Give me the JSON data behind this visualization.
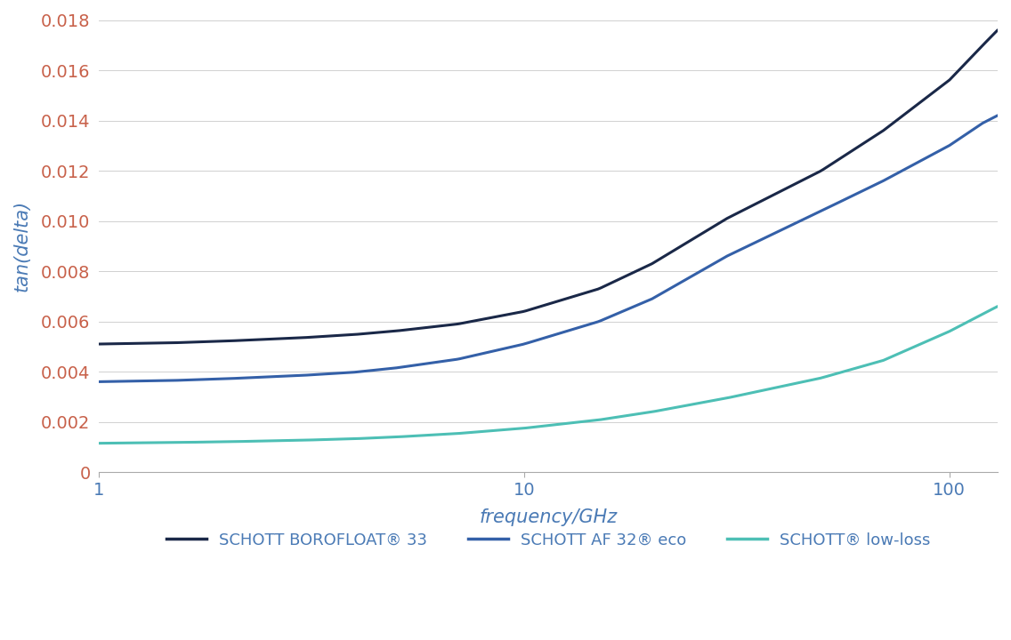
{
  "title": "",
  "xlabel": "frequency/GHz",
  "ylabel": "tan(delta)",
  "xlim": [
    1,
    130
  ],
  "ylim": [
    0,
    0.018
  ],
  "yticks": [
    0,
    0.002,
    0.004,
    0.006,
    0.008,
    0.01,
    0.012,
    0.014,
    0.016,
    0.018
  ],
  "ytick_labels": [
    "0",
    "0.002",
    "0.004",
    "0.006",
    "0.008",
    "0.010",
    "0.012",
    "0.014",
    "0.016",
    "0.018"
  ],
  "xticks": [
    1,
    10,
    100
  ],
  "background_color": "#ffffff",
  "grid_color": "#d0d0d0",
  "series": [
    {
      "name": "SCHOTT BOROFLOAT® 33",
      "color": "#1a2848",
      "linewidth": 2.2,
      "x": [
        1,
        1.5,
        2,
        3,
        4,
        5,
        7,
        10,
        15,
        20,
        30,
        50,
        70,
        100,
        120,
        130
      ],
      "y": [
        0.0051,
        0.00515,
        0.00522,
        0.00535,
        0.00548,
        0.00562,
        0.0059,
        0.0064,
        0.0073,
        0.0083,
        0.0101,
        0.012,
        0.0136,
        0.0156,
        0.017,
        0.0176
      ]
    },
    {
      "name": "SCHOTT AF 32® eco",
      "color": "#3460a8",
      "linewidth": 2.2,
      "x": [
        1,
        1.5,
        2,
        3,
        4,
        5,
        7,
        10,
        15,
        20,
        30,
        50,
        70,
        100,
        120,
        130
      ],
      "y": [
        0.0036,
        0.00365,
        0.00372,
        0.00385,
        0.00398,
        0.00415,
        0.0045,
        0.0051,
        0.006,
        0.0069,
        0.0086,
        0.0104,
        0.0116,
        0.013,
        0.0139,
        0.0142
      ]
    },
    {
      "name": "SCHOTT® low-loss",
      "color": "#4dbfb5",
      "linewidth": 2.2,
      "x": [
        1,
        1.5,
        2,
        3,
        4,
        5,
        7,
        10,
        15,
        20,
        30,
        50,
        70,
        100,
        120,
        130
      ],
      "y": [
        0.00115,
        0.00118,
        0.00121,
        0.00127,
        0.00133,
        0.0014,
        0.00154,
        0.00175,
        0.00208,
        0.0024,
        0.00295,
        0.00375,
        0.00445,
        0.0056,
        0.0063,
        0.0066
      ]
    }
  ],
  "legend_entries": [
    {
      "label": "SCHOTT BOROFLOAT® 33",
      "color": "#1a2848"
    },
    {
      "label": "SCHOTT AF 32® eco",
      "color": "#3460a8"
    },
    {
      "label": "SCHOTT® low-loss",
      "color": "#4dbfb5"
    }
  ],
  "label_color": "#4a7ab5",
  "tick_color": "#4a7ab5",
  "ytick_color": "#c8614a",
  "legend_text_color": "#4a7ab5"
}
